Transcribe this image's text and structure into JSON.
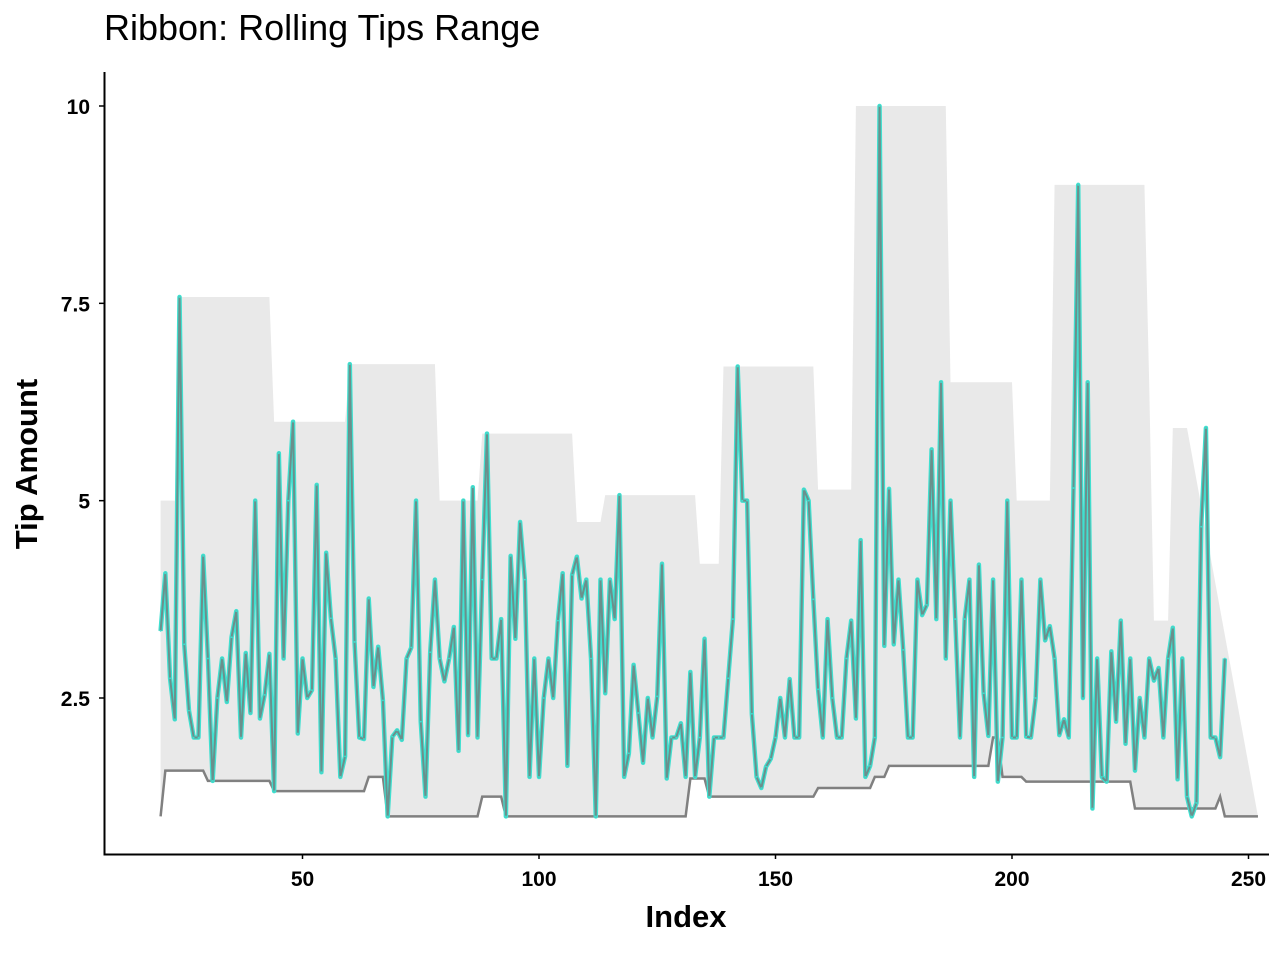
{
  "chart_data": {
    "type": "line",
    "title": "Ribbon: Rolling Tips Range",
    "xlabel": "Index",
    "ylabel": "Tip Amount",
    "xlim": [
      10,
      250
    ],
    "ylim": [
      0.6,
      10.4
    ],
    "xticks": [
      50,
      100,
      150,
      200,
      250
    ],
    "xtick_labels": [
      "50",
      "100",
      "150",
      "200",
      "250"
    ],
    "yticks": [
      2.5,
      5,
      7.5,
      10
    ],
    "ytick_labels": [
      "2.5",
      "5",
      "7.5",
      "10"
    ],
    "grid": false,
    "legend": "none",
    "x_start": 20,
    "series": [
      {
        "role": "tip",
        "color": "#40e0d0",
        "values": [
          3.35,
          4.08,
          2.75,
          2.23,
          7.58,
          3.18,
          2.34,
          2.0,
          2.0,
          4.3,
          3.0,
          1.45,
          2.5,
          3.0,
          2.45,
          3.27,
          3.6,
          2.0,
          3.07,
          2.31,
          5.0,
          2.24,
          2.54,
          3.06,
          1.32,
          5.6,
          3.0,
          5.0,
          6.0,
          2.05,
          3.0,
          2.5,
          2.6,
          5.2,
          1.56,
          4.34,
          3.51,
          3.0,
          1.5,
          1.76,
          6.73,
          3.21,
          2.0,
          1.98,
          3.76,
          2.64,
          3.15,
          2.47,
          1.0,
          2.01,
          2.09,
          1.97,
          3.0,
          3.14,
          5.0,
          2.2,
          1.25,
          3.08,
          4.0,
          3.0,
          2.71,
          3.0,
          3.4,
          1.83,
          5.0,
          2.03,
          5.17,
          2.0,
          4.0,
          5.85,
          3.0,
          3.0,
          3.5,
          1.0,
          4.3,
          3.25,
          4.73,
          4.0,
          1.5,
          3.0,
          1.5,
          2.5,
          3.0,
          2.5,
          3.48,
          4.08,
          1.64,
          4.06,
          4.29,
          3.76,
          4.0,
          3.0,
          1.0,
          4.0,
          2.56,
          4.0,
          3.5,
          5.07,
          1.5,
          1.8,
          2.92,
          2.31,
          1.68,
          2.5,
          2.0,
          2.52,
          4.2,
          1.48,
          2.0,
          2.0,
          2.18,
          1.5,
          2.83,
          1.5,
          2.0,
          3.25,
          1.25,
          2.0,
          2.0,
          2.0,
          2.75,
          3.5,
          6.7,
          5.0,
          5.0,
          2.3,
          1.5,
          1.36,
          1.63,
          1.73,
          2.0,
          2.5,
          2.0,
          2.74,
          2.0,
          2.0,
          5.14,
          5.0,
          3.75,
          2.61,
          2.0,
          3.5,
          2.5,
          2.0,
          2.0,
          3.0,
          3.48,
          2.24,
          4.5,
          1.5,
          1.64,
          2.0,
          10.0,
          3.16,
          5.15,
          3.18,
          4.0,
          3.11,
          2.0,
          2.0,
          4.0,
          3.55,
          3.68,
          5.65,
          3.5,
          6.5,
          3.0,
          5.0,
          3.5,
          2.0,
          3.5,
          4.0,
          1.5,
          4.19,
          2.56,
          2.02,
          4.0,
          1.44,
          2.0,
          5.0,
          2.0,
          2.0,
          4.0,
          2.01,
          2.0,
          2.5,
          4.0,
          3.23,
          3.41,
          3.0,
          2.03,
          2.23,
          2.0,
          5.16,
          9.0,
          2.5,
          6.5,
          1.1,
          3.0,
          1.5,
          1.44,
          3.09,
          2.2,
          3.48,
          1.92,
          3.0,
          1.58,
          2.5,
          2.0,
          3.0,
          2.72,
          2.88,
          2.0,
          3.0,
          3.39,
          1.47,
          3.0,
          1.25,
          1.0,
          1.17,
          4.67,
          5.92,
          2.0,
          2.0,
          1.75,
          3.0
        ]
      },
      {
        "role": "rolling-min",
        "color": "#808080",
        "values": [
          1.0,
          1.58,
          1.58,
          1.58,
          1.58,
          1.58,
          1.58,
          1.58,
          1.58,
          1.58,
          1.45,
          1.45,
          1.45,
          1.45,
          1.45,
          1.45,
          1.45,
          1.45,
          1.45,
          1.45,
          1.45,
          1.45,
          1.45,
          1.45,
          1.32,
          1.32,
          1.32,
          1.32,
          1.32,
          1.32,
          1.32,
          1.32,
          1.32,
          1.32,
          1.32,
          1.32,
          1.32,
          1.32,
          1.32,
          1.32,
          1.32,
          1.32,
          1.32,
          1.32,
          1.5,
          1.5,
          1.5,
          1.5,
          1.0,
          1.0,
          1.0,
          1.0,
          1.0,
          1.0,
          1.0,
          1.0,
          1.0,
          1.0,
          1.0,
          1.0,
          1.0,
          1.0,
          1.0,
          1.0,
          1.0,
          1.0,
          1.0,
          1.0,
          1.25,
          1.25,
          1.25,
          1.25,
          1.25,
          1.0,
          1.0,
          1.0,
          1.0,
          1.0,
          1.0,
          1.0,
          1.0,
          1.0,
          1.0,
          1.0,
          1.0,
          1.0,
          1.0,
          1.0,
          1.0,
          1.0,
          1.0,
          1.0,
          1.0,
          1.0,
          1.0,
          1.0,
          1.0,
          1.0,
          1.0,
          1.0,
          1.0,
          1.0,
          1.0,
          1.0,
          1.0,
          1.0,
          1.0,
          1.0,
          1.0,
          1.0,
          1.0,
          1.0,
          1.48,
          1.48,
          1.48,
          1.48,
          1.25,
          1.25,
          1.25,
          1.25,
          1.25,
          1.25,
          1.25,
          1.25,
          1.25,
          1.25,
          1.25,
          1.25,
          1.25,
          1.25,
          1.25,
          1.25,
          1.25,
          1.25,
          1.25,
          1.25,
          1.25,
          1.25,
          1.25,
          1.36,
          1.36,
          1.36,
          1.36,
          1.36,
          1.36,
          1.36,
          1.36,
          1.36,
          1.36,
          1.36,
          1.36,
          1.5,
          1.5,
          1.5,
          1.64,
          1.64,
          1.64,
          1.64,
          1.64,
          1.64,
          1.64,
          1.64,
          1.64,
          1.64,
          1.64,
          1.64,
          1.64,
          1.64,
          1.64,
          1.64,
          1.64,
          1.64,
          1.64,
          1.64,
          1.64,
          1.64,
          2.0,
          2.0,
          1.5,
          1.5,
          1.5,
          1.5,
          1.5,
          1.44,
          1.44,
          1.44,
          1.44,
          1.44,
          1.44,
          1.44,
          1.44,
          1.44,
          1.44,
          1.44,
          1.44,
          1.44,
          1.44,
          1.44,
          1.44,
          1.44,
          1.44,
          1.44,
          1.44,
          1.44,
          1.44,
          1.44,
          1.1,
          1.1,
          1.1,
          1.1,
          1.1,
          1.1,
          1.1,
          1.1,
          1.1,
          1.1,
          1.1,
          1.1,
          1.1,
          1.1,
          1.1,
          1.1,
          1.1,
          1.1,
          1.25,
          1.0,
          1.0,
          1.0,
          1.0,
          1.0,
          1.0,
          1.0,
          1.0
        ]
      },
      {
        "role": "rolling-max",
        "color": "#e9e9e9",
        "values": [
          5.0,
          5.0,
          5.0,
          5.0,
          7.58,
          7.58,
          7.58,
          7.58,
          7.58,
          7.58,
          7.58,
          7.58,
          7.58,
          7.58,
          7.58,
          7.58,
          7.58,
          7.58,
          7.58,
          7.58,
          7.58,
          7.58,
          7.58,
          7.58,
          6.0,
          6.0,
          6.0,
          6.0,
          6.0,
          6.0,
          6.0,
          6.0,
          6.0,
          6.0,
          6.0,
          6.0,
          6.0,
          6.0,
          6.0,
          6.0,
          6.73,
          6.73,
          6.73,
          6.73,
          6.73,
          6.73,
          6.73,
          6.73,
          6.73,
          6.73,
          6.73,
          6.73,
          6.73,
          6.73,
          6.73,
          6.73,
          6.73,
          6.73,
          6.73,
          5.0,
          5.0,
          5.0,
          5.0,
          5.0,
          5.0,
          5.0,
          5.0,
          5.0,
          5.85,
          5.85,
          5.85,
          5.85,
          5.85,
          5.85,
          5.85,
          5.85,
          5.85,
          5.85,
          5.85,
          5.85,
          5.85,
          5.85,
          5.85,
          5.85,
          5.85,
          5.85,
          5.85,
          5.85,
          4.73,
          4.73,
          4.73,
          4.73,
          4.73,
          4.73,
          5.07,
          5.07,
          5.07,
          5.07,
          5.07,
          5.07,
          5.07,
          5.07,
          5.07,
          5.07,
          5.07,
          5.07,
          5.07,
          5.07,
          5.07,
          5.07,
          5.07,
          5.07,
          5.07,
          5.07,
          4.2,
          4.2,
          4.2,
          4.2,
          4.2,
          6.7,
          6.7,
          6.7,
          6.7,
          6.7,
          6.7,
          6.7,
          6.7,
          6.7,
          6.7,
          6.7,
          6.7,
          6.7,
          6.7,
          6.7,
          6.7,
          6.7,
          6.7,
          6.7,
          6.7,
          5.14,
          5.14,
          5.14,
          5.14,
          5.14,
          5.14,
          5.14,
          5.14,
          10.0,
          10.0,
          10.0,
          10.0,
          10.0,
          10.0,
          10.0,
          10.0,
          10.0,
          10.0,
          10.0,
          10.0,
          10.0,
          10.0,
          10.0,
          10.0,
          10.0,
          10.0,
          10.0,
          10.0,
          6.5,
          6.5,
          6.5,
          6.5,
          6.5,
          6.5,
          6.5,
          6.5,
          6.5,
          6.5,
          6.5,
          6.5,
          6.5,
          6.5,
          5.0,
          5.0,
          5.0,
          5.0,
          5.0,
          5.0,
          5.0,
          5.0,
          9.0,
          9.0,
          9.0,
          9.0,
          9.0,
          9.0,
          9.0,
          9.0,
          9.0,
          9.0,
          9.0,
          9.0,
          9.0,
          9.0,
          9.0,
          9.0,
          9.0,
          9.0,
          9.0,
          9.0,
          6.5,
          3.48,
          3.48,
          3.48,
          3.48,
          5.92,
          5.92,
          5.92,
          5.92
        ]
      }
    ]
  }
}
